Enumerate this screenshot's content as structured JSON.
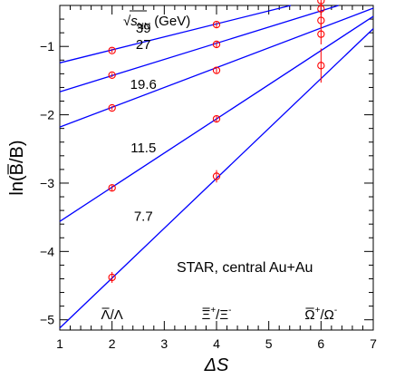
{
  "chart_data": {
    "type": "scatter",
    "xlabel": "ΔS",
    "ylabel": "ln(B̄/B)",
    "xlim": [
      1,
      7
    ],
    "ylim": [
      -5.15,
      -0.4
    ],
    "x_ticks": [
      "1",
      "2",
      "3",
      "4",
      "5",
      "6",
      "7"
    ],
    "y_ticks": [
      "−1",
      "−2",
      "−3",
      "−4",
      "−5"
    ],
    "grid": false,
    "legend_header": "√s_NN (GeV)",
    "legend_header_parts": {
      "root": "√",
      "symbol": "s",
      "subscript": "NN",
      "unit": "(GeV)"
    },
    "annotation": "STAR, central Au+Au",
    "ratio_labels": [
      {
        "x": 2,
        "num": "Λ",
        "num_sup": "",
        "den": "Λ",
        "den_sup": ""
      },
      {
        "x": 4,
        "num": "Ξ",
        "num_sup": "+",
        "den": "Ξ",
        "den_sup": "-"
      },
      {
        "x": 6,
        "num": "Ω",
        "num_sup": "+",
        "den": "Ω",
        "den_sup": "-"
      }
    ],
    "series": [
      {
        "name": "39",
        "label_at": [
          2.6,
          -0.8
        ],
        "points": [
          {
            "x": 2,
            "y": -1.06,
            "err": 0.03
          },
          {
            "x": 4,
            "y": -0.68,
            "err": 0.04
          },
          {
            "x": 6,
            "y": -0.33,
            "err": 0.1
          }
        ],
        "fit": {
          "slope": 0.19,
          "intercept": -1.43
        }
      },
      {
        "name": "27",
        "label_at": [
          2.6,
          -1.04
        ],
        "points": [
          {
            "x": 2,
            "y": -1.42,
            "err": 0.03
          },
          {
            "x": 4,
            "y": -0.97,
            "err": 0.04
          },
          {
            "x": 6,
            "y": -0.45,
            "err": 0.1
          }
        ],
        "fit": {
          "slope": 0.2367,
          "intercept": -1.9
        }
      },
      {
        "name": "19.6",
        "label_at": [
          2.6,
          -1.62
        ],
        "points": [
          {
            "x": 2,
            "y": -1.9,
            "err": 0.03
          },
          {
            "x": 4,
            "y": -1.35,
            "err": 0.04
          },
          {
            "x": 6,
            "y": -0.62,
            "err": 0.1
          }
        ],
        "fit": {
          "slope": 0.29,
          "intercept": -2.47
        }
      },
      {
        "name": "11.5",
        "label_at": [
          2.6,
          -2.55
        ],
        "points": [
          {
            "x": 2,
            "y": -3.07,
            "err": 0.04
          },
          {
            "x": 4,
            "y": -2.06,
            "err": 0.05
          },
          {
            "x": 6,
            "y": -0.82,
            "err": 0.15
          }
        ],
        "fit": {
          "slope": 0.5,
          "intercept": -4.06
        }
      },
      {
        "name": "7.7",
        "label_at": [
          2.6,
          -3.55
        ],
        "points": [
          {
            "x": 2,
            "y": -4.38,
            "err": 0.08
          },
          {
            "x": 4,
            "y": -2.9,
            "err": 0.09
          },
          {
            "x": 6,
            "y": -1.28,
            "err": 0.25
          }
        ],
        "fit": {
          "slope": 0.73,
          "intercept": -5.85
        }
      }
    ],
    "colors": {
      "points": "#ff0000",
      "fit": "#0000ff",
      "axis": "#000000"
    }
  }
}
